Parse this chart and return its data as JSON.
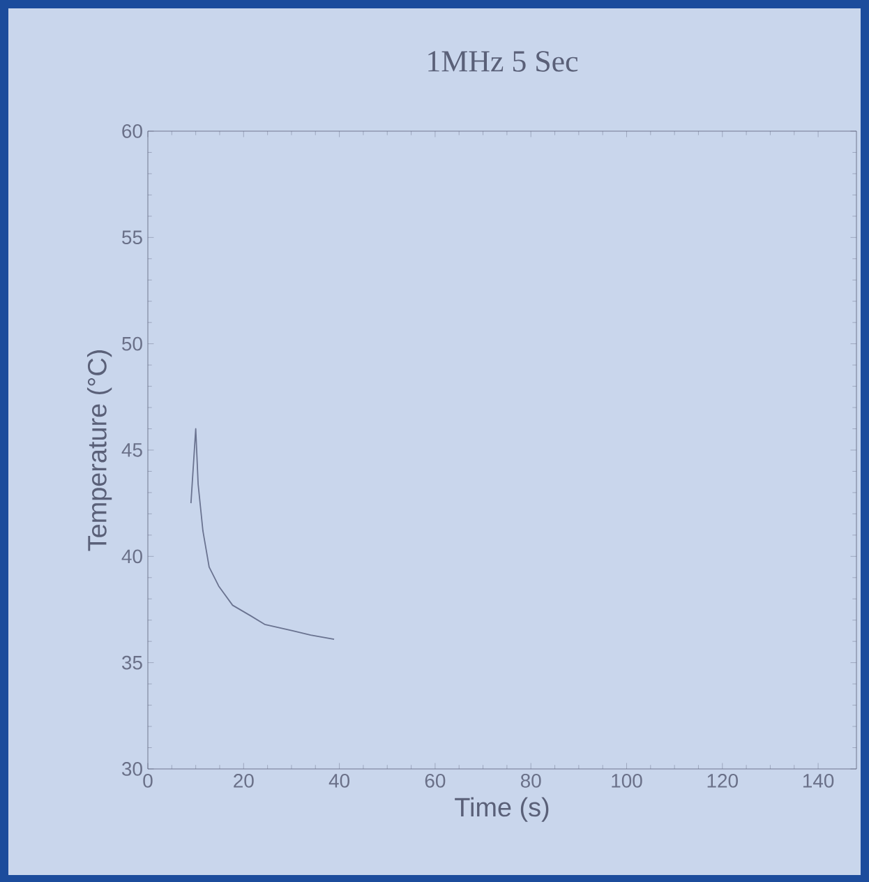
{
  "chart_data": {
    "type": "line",
    "title": "1MHz 5 Sec",
    "xlabel": "Time (s)",
    "ylabel": "Temperature (°C)",
    "series": [
      {
        "color": "#6a7390",
        "x": [
          9,
          10,
          10.5,
          11.5,
          12.8,
          14.8,
          17.7,
          21.5,
          24.4,
          30.2,
          34,
          38.9
        ],
        "values": [
          42.5,
          46,
          43.4,
          41.2,
          39.5,
          38.6,
          37.7,
          37.2,
          36.8,
          36.5,
          36.3,
          36.1
        ]
      }
    ],
    "xlim": [
      0,
      148
    ],
    "xticks": [
      0,
      20,
      40,
      60,
      80,
      100,
      120,
      140
    ],
    "ylim": [
      30,
      60
    ],
    "yticks": [
      30,
      35,
      40,
      45,
      50,
      55,
      60
    ],
    "marker": "none",
    "line_style": "solid"
  }
}
